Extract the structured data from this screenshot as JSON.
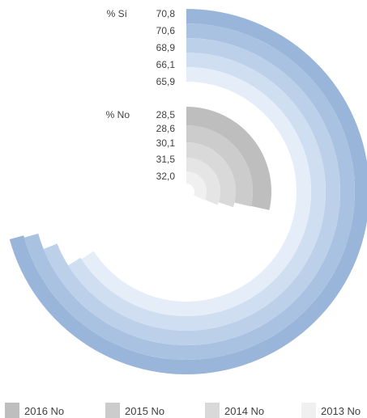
{
  "chart_data": {
    "type": "radial-bar",
    "series_groups": [
      {
        "label": "% Sí",
        "ring_colors": [
          "#9AB5DA",
          "#AAC2E2",
          "#BDD0EA",
          "#D0DEF1",
          "#E4EDF8"
        ],
        "values": [
          70.8,
          70.6,
          68.9,
          66.1,
          65.9
        ],
        "value_labels": [
          "70,8",
          "70,6",
          "68,9",
          "66,1",
          "65,9"
        ]
      },
      {
        "label": "% No",
        "ring_colors": [
          "#BEBEBE",
          "#CCCCCC",
          "#D9D9D9",
          "#E5E5E5",
          "#F0F0F0"
        ],
        "values": [
          28.5,
          28.6,
          30.1,
          31.5,
          32.0
        ],
        "value_labels": [
          "28,5",
          "28,6",
          "30,1",
          "31,5",
          "32,0"
        ]
      }
    ],
    "legend": {
      "position": "bottom",
      "items": [
        {
          "name": "2016 No",
          "color": "#BEBEBE"
        },
        {
          "name": "2015 No",
          "color": "#CCCCCC"
        },
        {
          "name": "2014 No",
          "color": "#D9D9D9"
        },
        {
          "name": "2013 No",
          "color": "#F0F0F0"
        }
      ]
    }
  }
}
